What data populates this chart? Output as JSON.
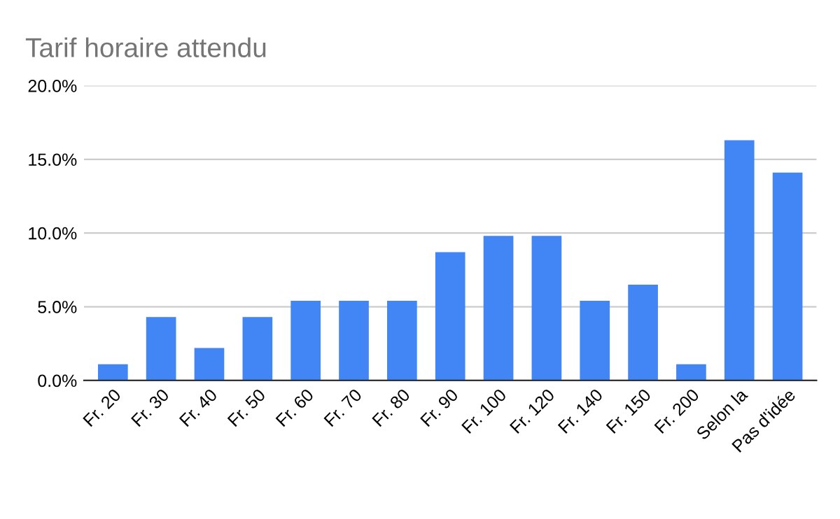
{
  "chart_data": {
    "type": "bar",
    "title": "Tarif horaire attendu",
    "categories": [
      "Fr. 20",
      "Fr. 30",
      "Fr. 40",
      "Fr. 50",
      "Fr. 60",
      "Fr. 70",
      "Fr. 80",
      "Fr. 90",
      "Fr. 100",
      "Fr. 120",
      "Fr. 140",
      "Fr. 150",
      "Fr. 200",
      "Selon la",
      "Pas d'idée"
    ],
    "values": [
      1.1,
      4.3,
      2.2,
      4.3,
      5.4,
      5.4,
      5.4,
      8.7,
      9.8,
      9.8,
      5.4,
      6.5,
      1.1,
      16.3,
      14.1
    ],
    "color": "#4285f4",
    "ylim": [
      0,
      20
    ],
    "yticks": [
      {
        "value": 0,
        "label": "0.0%"
      },
      {
        "value": 5,
        "label": "5.0%"
      },
      {
        "value": 10,
        "label": "10.0%"
      },
      {
        "value": 15,
        "label": "15.0%"
      },
      {
        "value": 20,
        "label": "20.0%"
      }
    ],
    "grid": "y",
    "legend": false
  }
}
